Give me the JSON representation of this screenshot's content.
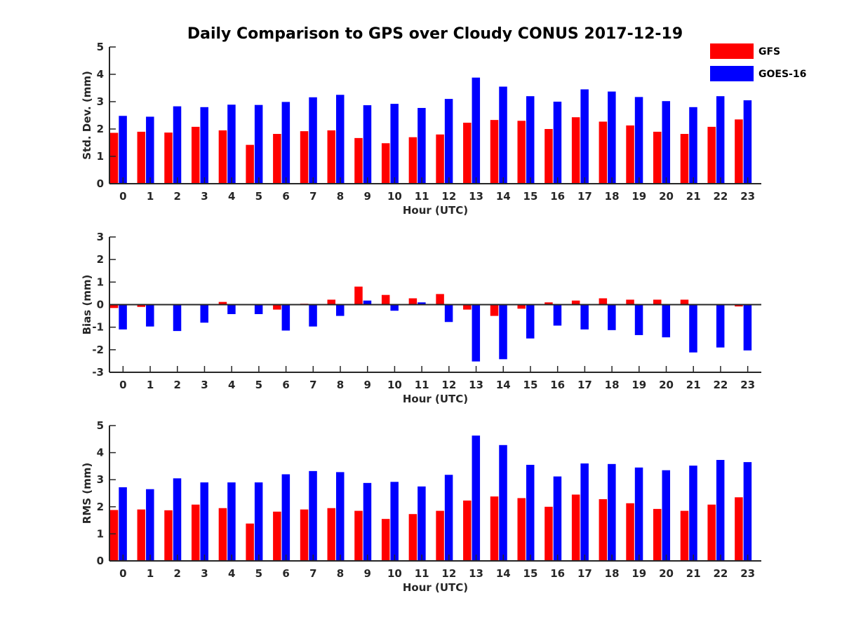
{
  "chart_data": {
    "title": "Daily Comparison to GPS over Cloudy CONUS 2017-12-19",
    "legend": {
      "placement": "top-right",
      "entries": [
        {
          "name": "GFS",
          "color": "#ff0000"
        },
        {
          "name": "GOES-16",
          "color": "#0000ff"
        }
      ]
    },
    "panels": [
      {
        "type": "bar",
        "ylabel": "Std. Dev. (mm)",
        "xlabel": "Hour (UTC)",
        "ylim": [
          0,
          5
        ],
        "yticks": [
          "0",
          "1",
          "2",
          "3",
          "4",
          "5"
        ],
        "categories": [
          "0",
          "1",
          "2",
          "3",
          "4",
          "5",
          "6",
          "7",
          "8",
          "9",
          "10",
          "11",
          "12",
          "13",
          "14",
          "15",
          "16",
          "17",
          "18",
          "19",
          "20",
          "21",
          "22",
          "23"
        ],
        "series": [
          {
            "name": "GFS",
            "color": "#ff0000",
            "values": [
              1.86,
              1.9,
              1.87,
              2.08,
              1.95,
              1.42,
              1.82,
              1.92,
              1.95,
              1.67,
              1.48,
              1.7,
              1.8,
              2.23,
              2.33,
              2.3,
              2.0,
              2.43,
              2.27,
              2.13,
              1.9,
              1.82,
              2.08,
              2.35
            ]
          },
          {
            "name": "GOES-16",
            "color": "#0000ff",
            "values": [
              2.48,
              2.45,
              2.83,
              2.8,
              2.89,
              2.88,
              2.99,
              3.16,
              3.25,
              2.87,
              2.92,
              2.77,
              3.1,
              3.88,
              3.55,
              3.2,
              3.0,
              3.45,
              3.37,
              3.17,
              3.02,
              2.8,
              3.2,
              3.05
            ]
          }
        ]
      },
      {
        "type": "bar",
        "ylabel": "Bias (mm)",
        "xlabel": "Hour (UTC)",
        "ylim": [
          -3,
          3
        ],
        "yticks": [
          "-3",
          "-2",
          "-1",
          "0",
          "1",
          "2",
          "3"
        ],
        "categories": [
          "0",
          "1",
          "2",
          "3",
          "4",
          "5",
          "6",
          "7",
          "8",
          "9",
          "10",
          "11",
          "12",
          "13",
          "14",
          "15",
          "16",
          "17",
          "18",
          "19",
          "20",
          "21",
          "22",
          "23"
        ],
        "series": [
          {
            "name": "GFS",
            "color": "#ff0000",
            "values": [
              -0.15,
              -0.1,
              0.0,
              0.0,
              0.12,
              -0.03,
              -0.22,
              0.04,
              0.22,
              0.8,
              0.43,
              0.28,
              0.47,
              -0.22,
              -0.5,
              -0.18,
              0.1,
              0.18,
              0.28,
              0.22,
              0.22,
              0.22,
              -0.03,
              -0.08
            ]
          },
          {
            "name": "GOES-16",
            "color": "#0000ff",
            "values": [
              -1.1,
              -0.97,
              -1.17,
              -0.8,
              -0.42,
              -0.42,
              -1.15,
              -0.97,
              -0.5,
              0.18,
              -0.27,
              0.1,
              -0.77,
              -2.52,
              -2.42,
              -1.5,
              -0.93,
              -1.1,
              -1.13,
              -1.35,
              -1.45,
              -2.12,
              -1.9,
              -2.03
            ]
          }
        ]
      },
      {
        "type": "bar",
        "ylabel": "RMS (mm)",
        "xlabel": "Hour (UTC)",
        "ylim": [
          0,
          5
        ],
        "yticks": [
          "0",
          "1",
          "2",
          "3",
          "4",
          "5"
        ],
        "categories": [
          "0",
          "1",
          "2",
          "3",
          "4",
          "5",
          "6",
          "7",
          "8",
          "9",
          "10",
          "11",
          "12",
          "13",
          "14",
          "15",
          "16",
          "17",
          "18",
          "19",
          "20",
          "21",
          "22",
          "23"
        ],
        "series": [
          {
            "name": "GFS",
            "color": "#ff0000",
            "values": [
              1.88,
              1.9,
              1.87,
              2.08,
              1.95,
              1.38,
              1.82,
              1.9,
              1.95,
              1.85,
              1.55,
              1.73,
              1.85,
              2.23,
              2.38,
              2.32,
              2.0,
              2.45,
              2.28,
              2.13,
              1.92,
              1.85,
              2.08,
              2.35
            ]
          },
          {
            "name": "GOES-16",
            "color": "#0000ff",
            "values": [
              2.72,
              2.65,
              3.05,
              2.9,
              2.9,
              2.9,
              3.2,
              3.32,
              3.28,
              2.88,
              2.92,
              2.75,
              3.18,
              4.63,
              4.28,
              3.55,
              3.12,
              3.6,
              3.58,
              3.45,
              3.35,
              3.52,
              3.73,
              3.65
            ]
          }
        ]
      }
    ]
  }
}
